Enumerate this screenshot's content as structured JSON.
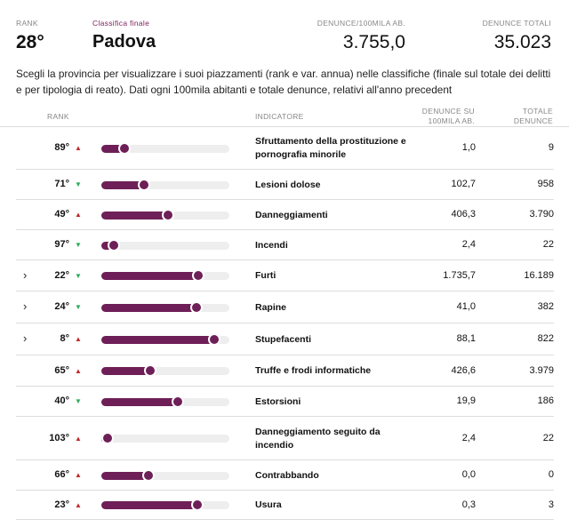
{
  "header": {
    "rank_label": "RANK",
    "rank_value": "28°",
    "class_label": "Classifica finale",
    "province": "Padova",
    "per100k_label": "DENUNCE/100MILA AB.",
    "per100k_value": "3.755,0",
    "total_label": "DENUNCE TOTALI",
    "total_value": "35.023",
    "accent_color": "#7b1f5a"
  },
  "description": "Scegli la provincia per visualizzare i suoi piazzamenti (rank e var. annua) nelle classifiche (finale sul totale dei delitti e per tipologia di reato). Dati ogni 100mila abitanti e totale denunce, relativi all'anno precedent",
  "table": {
    "col_rank": "RANK",
    "col_indicator": "INDICATORE",
    "col_per100k_line1": "DENUNCE SU",
    "col_per100k_line2": "100MILA AB.",
    "col_total_line1": "TOTALE",
    "col_total_line2": "DENUNCE",
    "bar_color": "#6e1f57",
    "up_color": "#c0282d",
    "down_color": "#2eaa5c",
    "rows": [
      {
        "rank": "89°",
        "trend": "up",
        "bar": 0.18,
        "name": "Sfruttamento della prostituzione e pornografia minorile",
        "per100k": "1,0",
        "total": "9",
        "expandable": false
      },
      {
        "rank": "71°",
        "trend": "down",
        "bar": 0.33,
        "name": "Lesioni dolose",
        "per100k": "102,7",
        "total": "958",
        "expandable": false
      },
      {
        "rank": "49°",
        "trend": "up",
        "bar": 0.52,
        "name": "Danneggiamenti",
        "per100k": "406,3",
        "total": "3.790",
        "expandable": false
      },
      {
        "rank": "97°",
        "trend": "down",
        "bar": 0.1,
        "name": "Incendi",
        "per100k": "2,4",
        "total": "22",
        "expandable": false
      },
      {
        "rank": "22°",
        "trend": "down",
        "bar": 0.76,
        "name": "Furti",
        "per100k": "1.735,7",
        "total": "16.189",
        "expandable": true
      },
      {
        "rank": "24°",
        "trend": "down",
        "bar": 0.74,
        "name": "Rapine",
        "per100k": "41,0",
        "total": "382",
        "expandable": true
      },
      {
        "rank": "8°",
        "trend": "up",
        "bar": 0.88,
        "name": "Stupefacenti",
        "per100k": "88,1",
        "total": "822",
        "expandable": true
      },
      {
        "rank": "65°",
        "trend": "up",
        "bar": 0.38,
        "name": "Truffe e frodi informatiche",
        "per100k": "426,6",
        "total": "3.979",
        "expandable": false
      },
      {
        "rank": "40°",
        "trend": "down",
        "bar": 0.6,
        "name": "Estorsioni",
        "per100k": "19,9",
        "total": "186",
        "expandable": false
      },
      {
        "rank": "103°",
        "trend": "up",
        "bar": 0.05,
        "name": "Danneggiamento seguito da incendio",
        "per100k": "2,4",
        "total": "22",
        "expandable": false
      },
      {
        "rank": "66°",
        "trend": "up",
        "bar": 0.37,
        "name": "Contrabbando",
        "per100k": "0,0",
        "total": "0",
        "expandable": false
      },
      {
        "rank": "23°",
        "trend": "up",
        "bar": 0.75,
        "name": "Usura",
        "per100k": "0,3",
        "total": "3",
        "expandable": false
      }
    ]
  }
}
